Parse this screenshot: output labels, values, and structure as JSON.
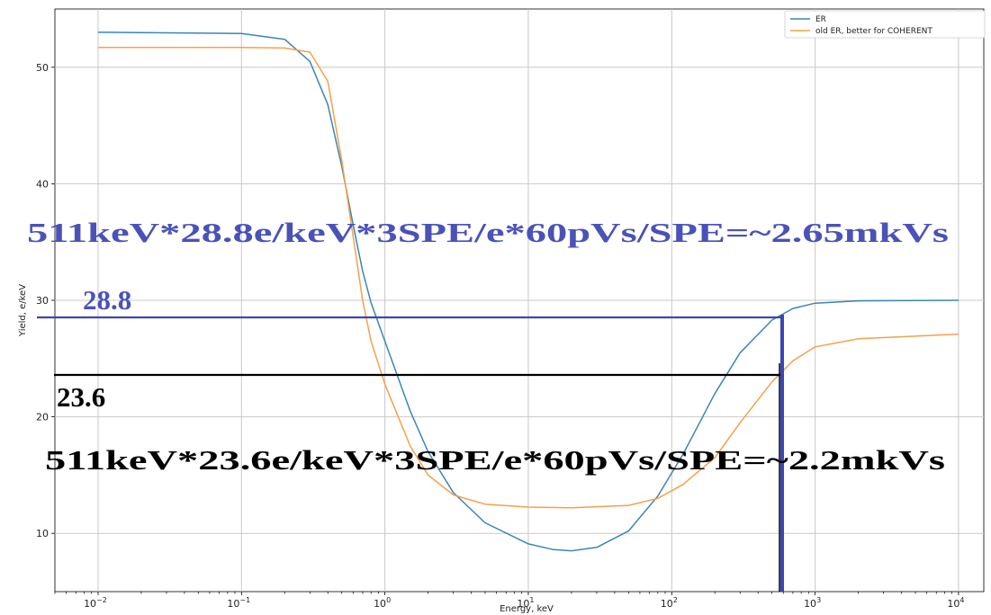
{
  "chart_data": {
    "type": "line",
    "xscale": "log",
    "xlabel": "Energy, keV",
    "ylabel": "Yield, e/keV",
    "xlim": [
      0.005,
      15000
    ],
    "ylim": [
      5,
      55
    ],
    "grid": true,
    "legend_placement": "top-right",
    "x_ticks": [
      {
        "value": 0.01,
        "base": "10",
        "exp": "−2"
      },
      {
        "value": 0.1,
        "base": "10",
        "exp": "−1"
      },
      {
        "value": 1,
        "base": "10",
        "exp": "0"
      },
      {
        "value": 10,
        "base": "10",
        "exp": "1"
      },
      {
        "value": 100,
        "base": "10",
        "exp": "2"
      },
      {
        "value": 1000,
        "base": "10",
        "exp": "3"
      },
      {
        "value": 10000,
        "base": "10",
        "exp": "4"
      }
    ],
    "y_ticks": [
      {
        "value": 10,
        "label": "10"
      },
      {
        "value": 20,
        "label": "20"
      },
      {
        "value": 30,
        "label": "30"
      },
      {
        "value": 40,
        "label": "40"
      },
      {
        "value": 50,
        "label": "50"
      }
    ],
    "series": [
      {
        "name": "ER",
        "color": "#3a86b4",
        "points": [
          [
            0.01,
            53.0
          ],
          [
            0.1,
            52.9
          ],
          [
            0.2,
            52.4
          ],
          [
            0.3,
            50.5
          ],
          [
            0.4,
            46.8
          ],
          [
            0.5,
            41.5
          ],
          [
            0.6,
            36.5
          ],
          [
            0.7,
            32.5
          ],
          [
            0.8,
            29.8
          ],
          [
            1.0,
            26.5
          ],
          [
            1.5,
            20.5
          ],
          [
            2,
            17.0
          ],
          [
            3,
            13.5
          ],
          [
            5,
            10.9
          ],
          [
            10,
            9.1
          ],
          [
            15,
            8.6
          ],
          [
            20,
            8.5
          ],
          [
            30,
            8.8
          ],
          [
            50,
            10.2
          ],
          [
            80,
            13.2
          ],
          [
            120,
            16.8
          ],
          [
            200,
            22.0
          ],
          [
            300,
            25.5
          ],
          [
            500,
            28.3
          ],
          [
            700,
            29.3
          ],
          [
            1000,
            29.75
          ],
          [
            2000,
            29.95
          ],
          [
            10000,
            30.0
          ]
        ]
      },
      {
        "name": "old ER, better for COHERENT",
        "color": "#f5a04a",
        "points": [
          [
            0.01,
            51.7
          ],
          [
            0.1,
            51.7
          ],
          [
            0.2,
            51.65
          ],
          [
            0.3,
            51.3
          ],
          [
            0.4,
            48.8
          ],
          [
            0.5,
            42.0
          ],
          [
            0.6,
            35.5
          ],
          [
            0.7,
            30.0
          ],
          [
            0.8,
            26.5
          ],
          [
            1.0,
            22.8
          ],
          [
            1.5,
            17.5
          ],
          [
            2,
            15.0
          ],
          [
            3,
            13.3
          ],
          [
            5,
            12.5
          ],
          [
            10,
            12.25
          ],
          [
            20,
            12.2
          ],
          [
            50,
            12.4
          ],
          [
            80,
            13.0
          ],
          [
            120,
            14.2
          ],
          [
            200,
            16.5
          ],
          [
            300,
            19.5
          ],
          [
            500,
            23.0
          ],
          [
            700,
            24.8
          ],
          [
            1000,
            26.0
          ],
          [
            2000,
            26.7
          ],
          [
            10000,
            27.1
          ]
        ]
      }
    ],
    "annotations": {
      "formula_blue": "511keV*28.8e/keV*3SPE/e*60pVs/SPE=~2.65mkVs",
      "value_blue": "28.8",
      "value_black": "23.6",
      "formula_black": "511keV*23.6e/keV*3SPE/e*60pVs/SPE=~2.2mkVs",
      "blue_color": "#3c46b4",
      "black_color": "#000000"
    }
  }
}
